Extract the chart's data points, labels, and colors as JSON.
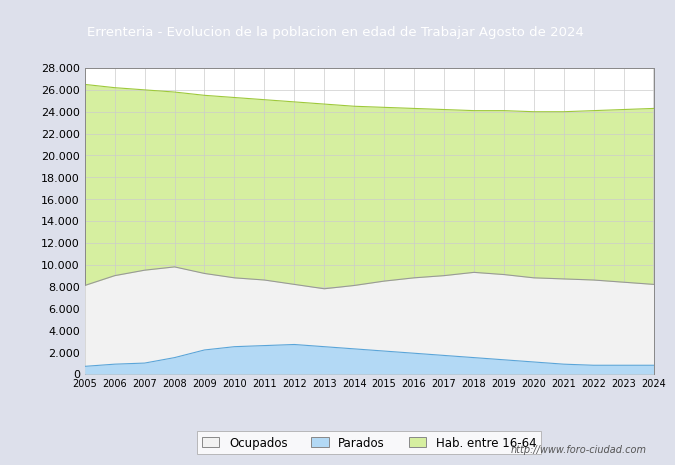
{
  "title": "Errenteria - Evolucion de la poblacion en edad de Trabajar Agosto de 2024",
  "title_bg_color": "#4c8eda",
  "title_text_color": "#ffffff",
  "footer_text": "http://www.foro-ciudad.com",
  "years": [
    2005,
    2006,
    2007,
    2008,
    2009,
    2010,
    2011,
    2012,
    2013,
    2014,
    2015,
    2016,
    2017,
    2018,
    2019,
    2020,
    2021,
    2022,
    2023,
    2024
  ],
  "hab_16_64": [
    26500,
    26200,
    26000,
    25800,
    25500,
    25300,
    25100,
    24900,
    24700,
    24500,
    24400,
    24300,
    24200,
    24100,
    24100,
    24000,
    24000,
    24100,
    24200,
    24300
  ],
  "ocupados": [
    8100,
    9000,
    9500,
    9800,
    9200,
    8800,
    8600,
    8200,
    7800,
    8100,
    8500,
    8800,
    9000,
    9300,
    9100,
    8800,
    8700,
    8600,
    8400,
    8200
  ],
  "parados": [
    700,
    900,
    1000,
    1500,
    2200,
    2500,
    2600,
    2700,
    2500,
    2300,
    2100,
    1900,
    1700,
    1500,
    1300,
    1100,
    900,
    800,
    800,
    800
  ],
  "ylim": [
    0,
    28000
  ],
  "yticks": [
    0,
    2000,
    4000,
    6000,
    8000,
    10000,
    12000,
    14000,
    16000,
    18000,
    20000,
    22000,
    24000,
    26000,
    28000
  ],
  "color_hab": "#d6efa0",
  "color_ocupados": "#f2f2f2",
  "color_parados": "#b3d9f5",
  "color_line_hab": "#9ec93a",
  "color_line_ocupados": "#999999",
  "color_line_parados": "#5aa5d9",
  "grid_color": "#cccccc",
  "chart_bg": "#ffffff",
  "outer_bg": "#dde0eb",
  "legend_edge": "#aaaaaa"
}
